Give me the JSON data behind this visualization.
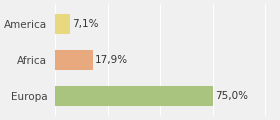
{
  "categories": [
    "America",
    "Africa",
    "Europa"
  ],
  "values": [
    7.1,
    17.9,
    75.0
  ],
  "bar_colors": [
    "#e8d87e",
    "#e8a97e",
    "#a8c47e"
  ],
  "labels": [
    "7,1%",
    "17,9%",
    "75,0%"
  ],
  "background_color": "#f0f0f0",
  "label_fontsize": 7.5,
  "tick_fontsize": 7.5,
  "xlim": [
    0,
    105
  ]
}
